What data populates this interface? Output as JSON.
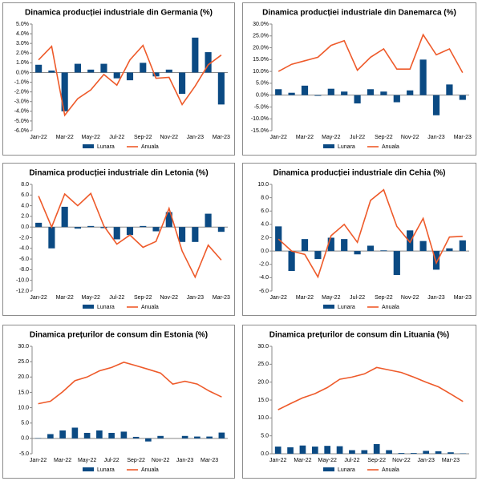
{
  "chart_data": [
    {
      "type": "bar-line",
      "title": "Dinamica producției industriale din Germania (%)",
      "categories": [
        "Jan-22",
        null,
        "Mar-22",
        null,
        "May-22",
        null,
        "Jul-22",
        null,
        "Sep-22",
        null,
        "Nov-22",
        null,
        "Jan-23",
        null,
        "Mar-23"
      ],
      "series": [
        {
          "name": "Lunara",
          "type": "bar",
          "color": "#0b4a83",
          "values": [
            0.8,
            0.2,
            -4.0,
            0.9,
            0.3,
            0.9,
            -0.6,
            -0.8,
            1.0,
            -0.4,
            0.3,
            -2.2,
            3.6,
            2.1,
            -3.3
          ]
        },
        {
          "name": "Anuala",
          "type": "line",
          "color": "#ee5a2a",
          "values": [
            1.3,
            2.7,
            -4.4,
            -2.7,
            -1.8,
            -0.2,
            -1.3,
            1.3,
            2.8,
            -0.6,
            -0.5,
            -3.3,
            -1.4,
            0.8,
            1.8
          ]
        }
      ],
      "ylim": [
        -6,
        5
      ],
      "yticks": [
        {
          "value": -6,
          "label": "-6.0%"
        },
        {
          "value": -5,
          "label": "-5.0%"
        },
        {
          "value": -4,
          "label": "-4.0%"
        },
        {
          "value": -3,
          "label": "-3.0%"
        },
        {
          "value": -2,
          "label": "-2.0%"
        },
        {
          "value": -1,
          "label": "-1.0%"
        },
        {
          "value": 0,
          "label": "0.0%"
        },
        {
          "value": 1,
          "label": "1.0%"
        },
        {
          "value": 2,
          "label": "2.0%"
        },
        {
          "value": 3,
          "label": "3.0%"
        },
        {
          "value": 4,
          "label": "4.0%"
        },
        {
          "value": 5,
          "label": "5.0%"
        }
      ],
      "legend": "bottom"
    },
    {
      "type": "bar-line",
      "title": "Dinamica producției industriale din Danemarca (%)",
      "categories": [
        "Jan-22",
        null,
        "Mar-22",
        null,
        "May-22",
        null,
        "Jul-22",
        null,
        "Sep-22",
        null,
        "Nov-22",
        null,
        "Jan-23",
        null,
        "Mar-23"
      ],
      "series": [
        {
          "name": "Lunara",
          "type": "bar",
          "color": "#0b4a83",
          "values": [
            2.5,
            1.0,
            4.0,
            -0.3,
            2.7,
            1.5,
            -3.5,
            2.5,
            1.5,
            -3.0,
            2.0,
            15.0,
            -8.5,
            4.5,
            -2.0
          ]
        },
        {
          "name": "Anuala",
          "type": "line",
          "color": "#ee5a2a",
          "values": [
            10,
            13,
            14.5,
            16,
            21,
            23,
            10.5,
            16,
            19.5,
            11,
            11,
            25.5,
            17,
            19.5,
            9.5
          ]
        }
      ],
      "ylim": [
        -15,
        30
      ],
      "yticks": [
        {
          "value": -15,
          "label": "-15.0%"
        },
        {
          "value": -10,
          "label": "-10.0%"
        },
        {
          "value": -5,
          "label": "-5.0%"
        },
        {
          "value": 0,
          "label": "0.0%"
        },
        {
          "value": 5,
          "label": "5.0%"
        },
        {
          "value": 10,
          "label": "10.0%"
        },
        {
          "value": 15,
          "label": "15.0%"
        },
        {
          "value": 20,
          "label": "20.0%"
        },
        {
          "value": 25,
          "label": "25.0%"
        },
        {
          "value": 30,
          "label": "30.0%"
        }
      ],
      "legend": "bottom"
    },
    {
      "type": "bar-line",
      "title": "Dinamica producției industriale din Letonia (%)",
      "categories": [
        "Jan-22",
        null,
        "Mar-22",
        null,
        "May-22",
        null,
        "Jul-22",
        null,
        "Sep-22",
        null,
        "Nov-22",
        null,
        "Jan-23",
        null,
        "Mar-23"
      ],
      "series": [
        {
          "name": "Lunara",
          "type": "bar",
          "color": "#0b4a83",
          "values": [
            0.8,
            -4.0,
            3.8,
            -0.3,
            0.2,
            -0.2,
            -2.3,
            -1.5,
            0.2,
            -0.8,
            2.8,
            -2.8,
            -2.8,
            2.5,
            -0.9
          ]
        },
        {
          "name": "Anuala",
          "type": "line",
          "color": "#ee5a2a",
          "values": [
            5.8,
            0,
            6.2,
            4.0,
            6.3,
            0.2,
            -3.2,
            -1.5,
            -3.8,
            -2.7,
            3.5,
            -4.5,
            -9.4,
            -3.4,
            -6.2
          ]
        }
      ],
      "ylim": [
        -12,
        8
      ],
      "yticks": [
        {
          "value": -12,
          "label": "-12.0"
        },
        {
          "value": -10,
          "label": "-10.0"
        },
        {
          "value": -8,
          "label": "-8.0"
        },
        {
          "value": -6,
          "label": "-6.0"
        },
        {
          "value": -4,
          "label": "-4.0"
        },
        {
          "value": -2,
          "label": "-2.0"
        },
        {
          "value": 0,
          "label": "0.0"
        },
        {
          "value": 2,
          "label": "2.0"
        },
        {
          "value": 4,
          "label": "4.0"
        },
        {
          "value": 6,
          "label": "6.0"
        },
        {
          "value": 8,
          "label": "8.0"
        }
      ],
      "legend": "bottom"
    },
    {
      "type": "bar-line",
      "title": "Dinamica producției industriale din Cehia (%)",
      "categories": [
        "Jan-22",
        null,
        "Mar-22",
        null,
        "May-22",
        null,
        "Jul-22",
        null,
        "Sep-22",
        null,
        "Nov-22",
        null,
        "Jan-23",
        null,
        "Mar-23"
      ],
      "series": [
        {
          "name": "Lunara",
          "type": "bar",
          "color": "#0b4a83",
          "values": [
            3.7,
            -3.0,
            1.8,
            -1.2,
            2.0,
            1.8,
            -0.5,
            0.8,
            0.1,
            -3.6,
            3.1,
            1.5,
            -2.8,
            0.4,
            1.6
          ]
        },
        {
          "name": "Anuala",
          "type": "line",
          "color": "#ee5a2a",
          "values": [
            1.8,
            0.0,
            -0.5,
            -3.9,
            2.3,
            4.0,
            1.3,
            7.6,
            9.2,
            3.7,
            1.3,
            4.9,
            -1.8,
            2.1,
            2.2
          ]
        }
      ],
      "ylim": [
        -6,
        10
      ],
      "yticks": [
        {
          "value": -6,
          "label": "-6.0"
        },
        {
          "value": -4,
          "label": "-4.0"
        },
        {
          "value": -2,
          "label": "-2.0"
        },
        {
          "value": 0,
          "label": "0.0"
        },
        {
          "value": 2,
          "label": "2.0"
        },
        {
          "value": 4,
          "label": "4.0"
        },
        {
          "value": 6,
          "label": "6.0"
        },
        {
          "value": 8,
          "label": "8.0"
        },
        {
          "value": 10,
          "label": "10.0"
        }
      ],
      "legend": "bottom"
    },
    {
      "type": "bar-line",
      "title": "Dinamica prețurilor de consum din Estonia (%)",
      "categories": [
        "Jan-22",
        null,
        "Mar-22",
        null,
        "May-22",
        null,
        "Jul-22",
        null,
        "Sep-22",
        null,
        "Nov-22",
        null,
        "Jan-23",
        null,
        "Mar-23",
        null
      ],
      "series": [
        {
          "name": "Lunara",
          "type": "bar",
          "color": "#0b4a83",
          "values": [
            0.1,
            1.4,
            2.6,
            3.5,
            1.8,
            2.6,
            1.8,
            2.2,
            0.5,
            -1.0,
            0.8,
            0,
            0.8,
            0.6,
            0.6,
            1.9
          ]
        },
        {
          "name": "Anuala",
          "type": "line",
          "color": "#ee5a2a",
          "values": [
            11.3,
            12.1,
            15.2,
            18.8,
            20,
            22,
            23.1,
            24.8,
            23.7,
            22.5,
            21.3,
            17.7,
            18.6,
            17.7,
            15.4,
            13.5
          ]
        }
      ],
      "ylim": [
        -5,
        30
      ],
      "yticks": [
        {
          "value": -5,
          "label": "-5.0"
        },
        {
          "value": 0,
          "label": "0.0"
        },
        {
          "value": 5,
          "label": "5.0"
        },
        {
          "value": 10,
          "label": "10.0"
        },
        {
          "value": 15,
          "label": "15.0"
        },
        {
          "value": 20,
          "label": "20.0"
        },
        {
          "value": 25,
          "label": "25.0"
        },
        {
          "value": 30,
          "label": "30.0"
        }
      ],
      "legend": "bottom"
    },
    {
      "type": "bar-line",
      "title": "Dinamica prețurilor de consum din Lituania (%)",
      "categories": [
        "Jan-22",
        null,
        "Mar-22",
        null,
        "May-22",
        null,
        "Jul-22",
        null,
        "Sep-22",
        null,
        "Nov-22",
        null,
        "Jan-23",
        null,
        "Mar-23",
        null
      ],
      "series": [
        {
          "name": "Lunara",
          "type": "bar",
          "color": "#0b4a83",
          "values": [
            2.0,
            1.8,
            2.3,
            2.0,
            2.2,
            2.1,
            1.0,
            1.0,
            2.7,
            1.0,
            0.2,
            0.2,
            0.8,
            0.7,
            0.4,
            0.1
          ]
        },
        {
          "name": "Anuala",
          "type": "line",
          "color": "#ee5a2a",
          "values": [
            12.3,
            14,
            15.6,
            16.8,
            18.5,
            20.8,
            21.4,
            22.3,
            24.1,
            23.4,
            22.7,
            21.4,
            20,
            18.7,
            16.7,
            14.6
          ]
        }
      ],
      "ylim": [
        0,
        30
      ],
      "yticks": [
        {
          "value": 0,
          "label": "0.0"
        },
        {
          "value": 5,
          "label": "5.0"
        },
        {
          "value": 10,
          "label": "10.0"
        },
        {
          "value": 15,
          "label": "15.0"
        },
        {
          "value": 20,
          "label": "20.0"
        },
        {
          "value": 25,
          "label": "25.0"
        },
        {
          "value": 30,
          "label": "30.0"
        }
      ],
      "legend": "bottom"
    }
  ]
}
